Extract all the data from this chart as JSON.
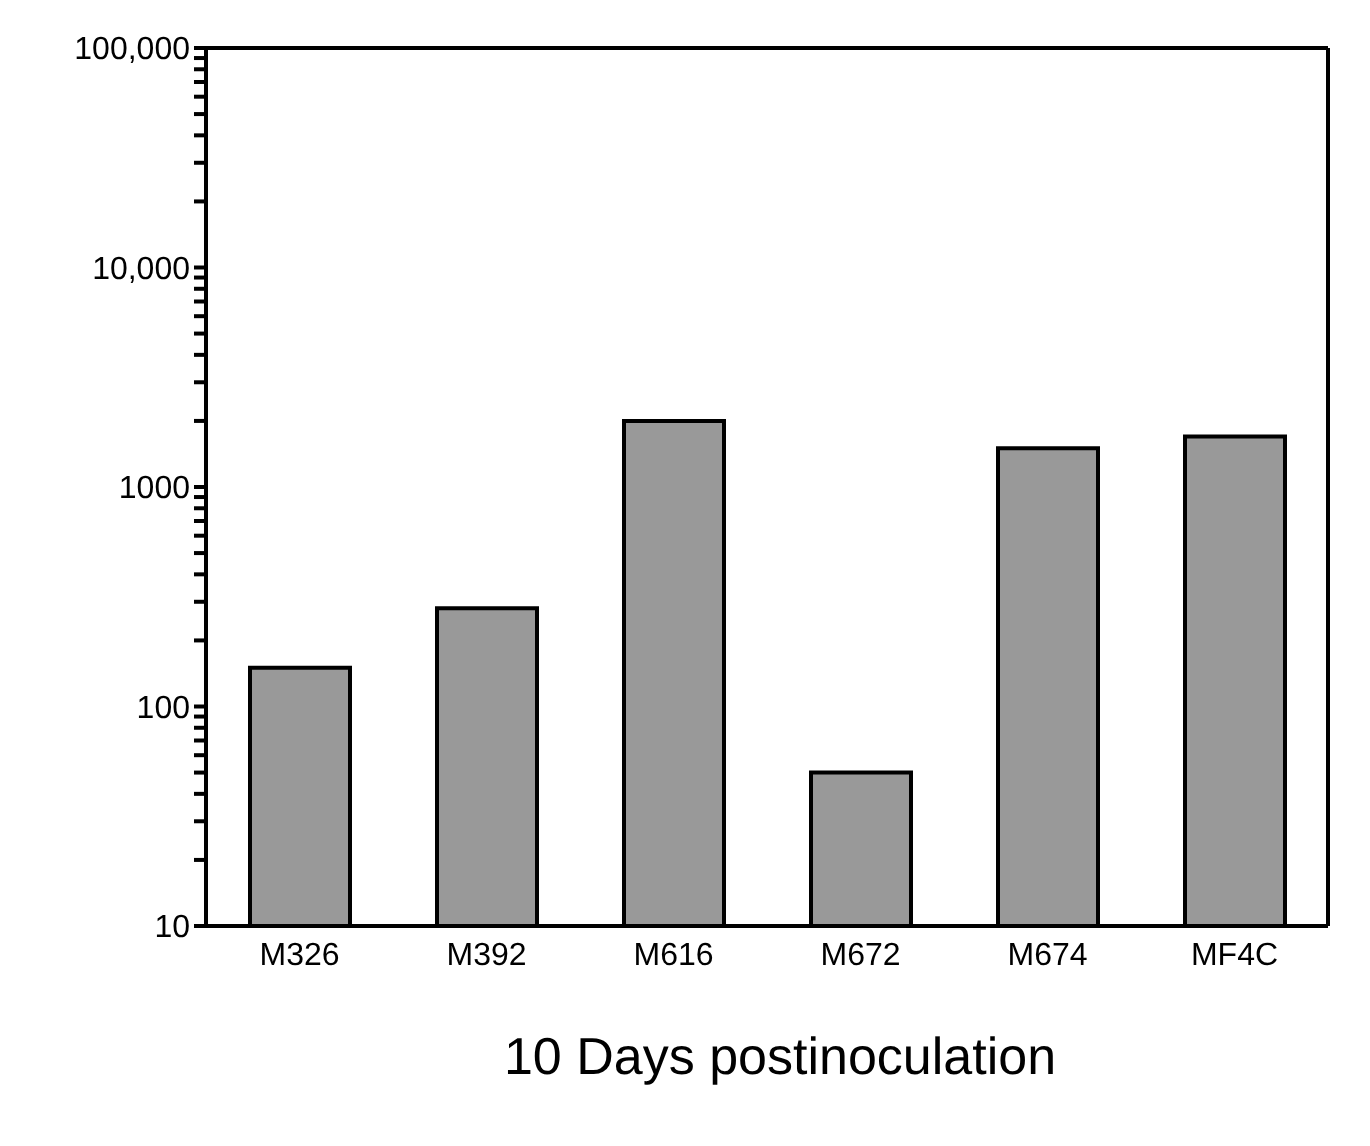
{
  "chart_data": {
    "type": "bar",
    "xlabel": "10 Days postinoculation",
    "categories": [
      "M326",
      "M392",
      "M616",
      "M672",
      "M674",
      "MF4C"
    ],
    "values": [
      150,
      280,
      2000,
      50,
      1500,
      1700
    ],
    "color": "#999999",
    "log": "y",
    "ylim": [
      10,
      100000
    ],
    "yticks": [
      10,
      {
        "value": 20,
        "label": null
      },
      {
        "value": 30,
        "label": null
      },
      {
        "value": 40,
        "label": null
      },
      {
        "value": 50,
        "label": null
      },
      {
        "value": 60,
        "label": null
      },
      {
        "value": 70,
        "label": null
      },
      {
        "value": 80,
        "label": null
      },
      {
        "value": 90,
        "label": null
      },
      100,
      {
        "value": 200,
        "label": null
      },
      {
        "value": 300,
        "label": null
      },
      {
        "value": 400,
        "label": null
      },
      {
        "value": 500,
        "label": null
      },
      {
        "value": 600,
        "label": null
      },
      {
        "value": 700,
        "label": null
      },
      {
        "value": 800,
        "label": null
      },
      {
        "value": 900,
        "label": null
      },
      1000,
      {
        "value": 2000,
        "label": null
      },
      {
        "value": 3000,
        "label": null
      },
      {
        "value": 4000,
        "label": null
      },
      {
        "value": 5000,
        "label": null
      },
      {
        "value": 6000,
        "label": null
      },
      {
        "value": 7000,
        "label": null
      },
      {
        "value": 8000,
        "label": null
      },
      {
        "value": 9000,
        "label": null
      },
      {
        "value": 10000,
        "label": "10,000"
      },
      {
        "value": 20000,
        "label": null
      },
      {
        "value": 30000,
        "label": null
      },
      {
        "value": 40000,
        "label": null
      },
      {
        "value": 50000,
        "label": null
      },
      {
        "value": 60000,
        "label": null
      },
      {
        "value": 70000,
        "label": null
      },
      {
        "value": 80000,
        "label": null
      },
      {
        "value": 90000,
        "label": null
      },
      {
        "value": 100000,
        "label": "100,000"
      }
    ],
    "grid": false,
    "legend": false
  }
}
